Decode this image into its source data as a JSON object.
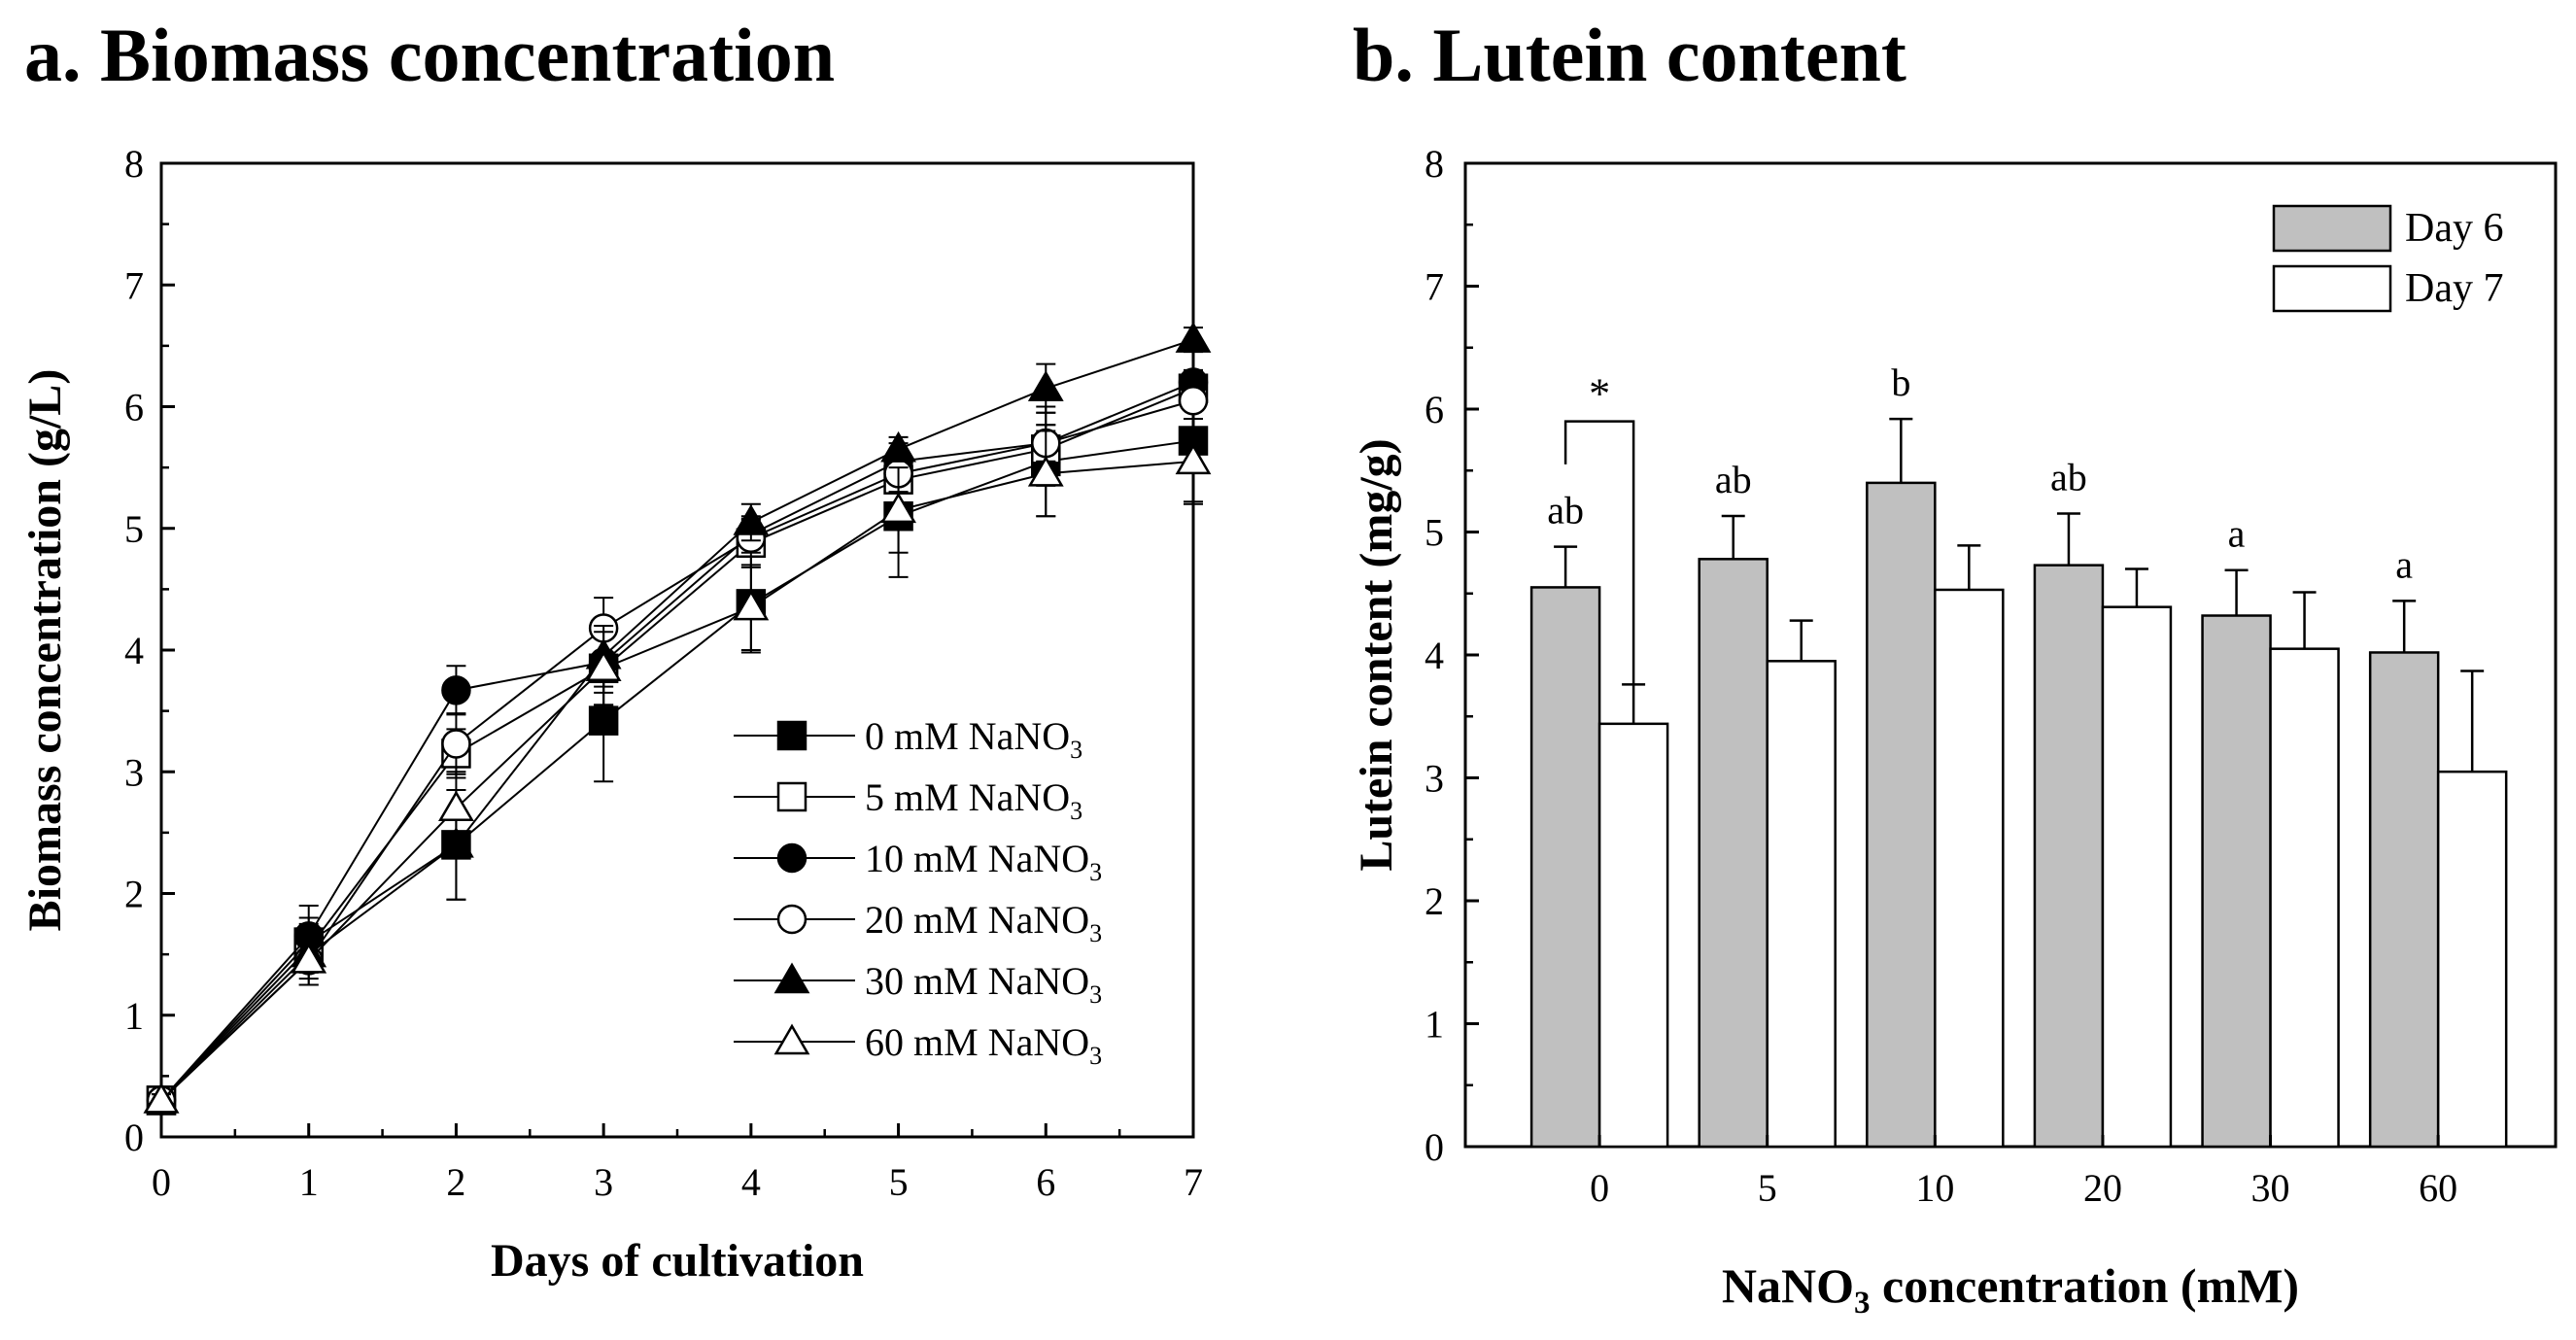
{
  "chart_data": [
    {
      "type": "line",
      "title": "a. Biomass concentration",
      "xlabel": "Days of cultivation",
      "ylabel": "Biomass concentration (g/L)",
      "xlim": [
        0,
        7
      ],
      "ylim": [
        0,
        8
      ],
      "xticks": [
        "0",
        "1",
        "2",
        "3",
        "4",
        "5",
        "6",
        "7"
      ],
      "yticks": [
        "0",
        "1",
        "2",
        "3",
        "4",
        "5",
        "6",
        "7",
        "8"
      ],
      "grid": false,
      "legend_position": "bottom-right",
      "x": [
        0,
        1,
        2,
        3,
        4,
        5,
        6,
        7
      ],
      "series": [
        {
          "name": "0 mM NaNO3",
          "conc": "0",
          "marker": "square-filled",
          "values": [
            0.3,
            1.6,
            2.4,
            3.42,
            4.38,
            5.1,
            5.55,
            5.72
          ],
          "errors": [
            0.05,
            0.2,
            0.45,
            0.5,
            0.4,
            0.5,
            0.45,
            0.5
          ]
        },
        {
          "name": "5 mM NaNO3",
          "conc": "5",
          "marker": "square-open",
          "values": [
            0.3,
            1.55,
            3.15,
            3.85,
            4.88,
            5.4,
            5.65,
            6.15
          ],
          "errors": [
            0.05,
            0.2,
            0.2,
            0.3,
            0.2,
            0.2,
            0.3,
            0.1
          ]
        },
        {
          "name": "10 mM NaNO3",
          "conc": "10",
          "marker": "circle-filled",
          "values": [
            0.3,
            1.65,
            3.67,
            3.9,
            4.95,
            5.55,
            5.7,
            6.2
          ],
          "errors": [
            0.05,
            0.25,
            0.2,
            0.25,
            0.15,
            0.15,
            0.15,
            0.1
          ]
        },
        {
          "name": "20 mM NaNO3",
          "conc": "20",
          "marker": "circle-open",
          "values": [
            0.3,
            1.45,
            3.23,
            4.18,
            4.92,
            5.45,
            5.7,
            6.05
          ],
          "errors": [
            0.05,
            0.2,
            0.25,
            0.25,
            0.15,
            0.15,
            0.15,
            0.15
          ]
        },
        {
          "name": "30 mM NaNO3",
          "conc": "30",
          "marker": "triangle-filled",
          "values": [
            0.3,
            1.5,
            2.4,
            3.95,
            5.05,
            5.65,
            6.15,
            6.55
          ],
          "errors": [
            0.05,
            0.2,
            0.45,
            0.25,
            0.15,
            0.1,
            0.2,
            0.1
          ]
        },
        {
          "name": "60 mM NaNO3",
          "conc": "60",
          "marker": "triangle-open",
          "values": [
            0.3,
            1.45,
            2.7,
            3.85,
            4.35,
            5.15,
            5.45,
            5.55
          ],
          "errors": [
            0.05,
            0.2,
            0.3,
            0.3,
            0.35,
            0.35,
            0.35,
            0.35
          ]
        }
      ]
    },
    {
      "type": "bar",
      "title": "b. Lutein content",
      "xlabel": "NaNO3 concentration (mM)",
      "ylabel": "Lutein content (mg/g)",
      "ylim": [
        0,
        8
      ],
      "yticks": [
        "0",
        "1",
        "2",
        "3",
        "4",
        "5",
        "6",
        "7",
        "8"
      ],
      "grid": false,
      "legend_position": "top-right",
      "categories": [
        "0",
        "5",
        "10",
        "20",
        "30",
        "60"
      ],
      "series": [
        {
          "name": "Day 6",
          "color": "#c0c0c0",
          "values": [
            4.55,
            4.78,
            5.4,
            4.73,
            4.32,
            4.02
          ],
          "errors": [
            0.33,
            0.35,
            0.52,
            0.42,
            0.37,
            0.42
          ]
        },
        {
          "name": "Day 7",
          "color": "#ffffff",
          "values": [
            3.44,
            3.95,
            4.53,
            4.39,
            4.05,
            3.05
          ],
          "errors": [
            0.32,
            0.33,
            0.36,
            0.31,
            0.46,
            0.82
          ]
        }
      ],
      "letters": [
        "ab",
        "ab",
        "b",
        "ab",
        "a",
        "a"
      ],
      "significance_marker": "*"
    }
  ]
}
